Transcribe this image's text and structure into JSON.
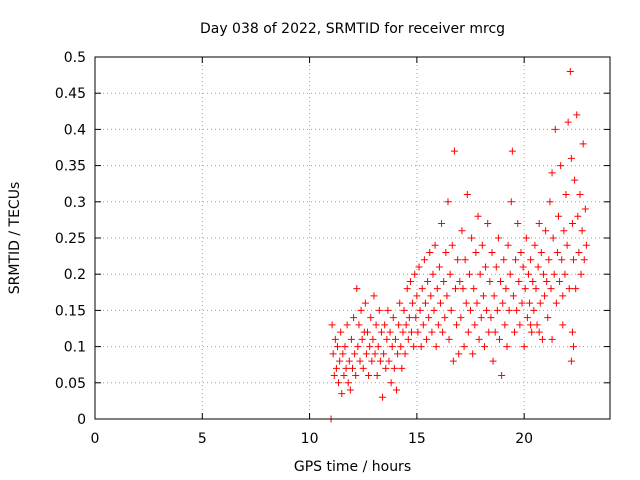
{
  "chart_data": {
    "type": "scatter",
    "title": "Day 038 of 2022, SRMTID for receiver mrcg",
    "xlabel": "GPS time / hours",
    "ylabel": "SRMTID / TECUs",
    "xlim": [
      0,
      24
    ],
    "ylim": [
      0,
      0.5
    ],
    "x_ticks": [
      0,
      5,
      10,
      15,
      20
    ],
    "x_tick_labels": [
      "0",
      "5",
      "10",
      "15",
      "20"
    ],
    "y_ticks": [
      0,
      0.05,
      0.1,
      0.15,
      0.2,
      0.25,
      0.3,
      0.35,
      0.4,
      0.45,
      0.5
    ],
    "y_tick_labels": [
      "0",
      "0.05",
      "0.1",
      "0.15",
      "0.2",
      "0.25",
      "0.3",
      "0.35",
      "0.4",
      "0.45",
      "0.5"
    ],
    "grid": true,
    "marker": "plus",
    "color": "#ff0000",
    "series": [
      {
        "name": "SRMTID",
        "points": [
          [
            11.0,
            0.0
          ],
          [
            11.05,
            0.13
          ],
          [
            11.1,
            0.09
          ],
          [
            11.15,
            0.06
          ],
          [
            11.2,
            0.11
          ],
          [
            11.25,
            0.07
          ],
          [
            11.3,
            0.1
          ],
          [
            11.35,
            0.05
          ],
          [
            11.4,
            0.08
          ],
          [
            11.45,
            0.12
          ],
          [
            11.5,
            0.035
          ],
          [
            11.55,
            0.09
          ],
          [
            11.6,
            0.06
          ],
          [
            11.65,
            0.1
          ],
          [
            11.7,
            0.07
          ],
          [
            11.75,
            0.13
          ],
          [
            11.8,
            0.05
          ],
          [
            11.85,
            0.08
          ],
          [
            11.9,
            0.04
          ],
          [
            11.95,
            0.11
          ],
          [
            12.0,
            0.07
          ],
          [
            12.05,
            0.14
          ],
          [
            12.1,
            0.09
          ],
          [
            12.15,
            0.06
          ],
          [
            12.2,
            0.18
          ],
          [
            12.25,
            0.1
          ],
          [
            12.3,
            0.13
          ],
          [
            12.35,
            0.08
          ],
          [
            12.4,
            0.15
          ],
          [
            12.45,
            0.11
          ],
          [
            12.5,
            0.07
          ],
          [
            12.55,
            0.12
          ],
          [
            12.6,
            0.16
          ],
          [
            12.65,
            0.09
          ],
          [
            12.7,
            0.12
          ],
          [
            12.75,
            0.06
          ],
          [
            12.8,
            0.1
          ],
          [
            12.85,
            0.14
          ],
          [
            12.9,
            0.08
          ],
          [
            12.95,
            0.11
          ],
          [
            13.0,
            0.17
          ],
          [
            13.05,
            0.09
          ],
          [
            13.1,
            0.13
          ],
          [
            13.15,
            0.06
          ],
          [
            13.2,
            0.1
          ],
          [
            13.25,
            0.15
          ],
          [
            13.3,
            0.08
          ],
          [
            13.35,
            0.12
          ],
          [
            13.4,
            0.03
          ],
          [
            13.45,
            0.09
          ],
          [
            13.5,
            0.13
          ],
          [
            13.55,
            0.07
          ],
          [
            13.6,
            0.11
          ],
          [
            13.65,
            0.15
          ],
          [
            13.7,
            0.08
          ],
          [
            13.75,
            0.12
          ],
          [
            13.8,
            0.05
          ],
          [
            13.85,
            0.1
          ],
          [
            13.9,
            0.14
          ],
          [
            13.95,
            0.07
          ],
          [
            14.0,
            0.11
          ],
          [
            14.05,
            0.04
          ],
          [
            14.1,
            0.09
          ],
          [
            14.15,
            0.13
          ],
          [
            14.2,
            0.16
          ],
          [
            14.25,
            0.1
          ],
          [
            14.3,
            0.07
          ],
          [
            14.35,
            0.12
          ],
          [
            14.4,
            0.15
          ],
          [
            14.45,
            0.09
          ],
          [
            14.5,
            0.13
          ],
          [
            14.55,
            0.18
          ],
          [
            14.6,
            0.11
          ],
          [
            14.65,
            0.14
          ],
          [
            14.7,
            0.19
          ],
          [
            14.75,
            0.12
          ],
          [
            14.8,
            0.16
          ],
          [
            14.85,
            0.1
          ],
          [
            14.9,
            0.2
          ],
          [
            14.95,
            0.14
          ],
          [
            15.0,
            0.17
          ],
          [
            15.05,
            0.12
          ],
          [
            15.1,
            0.21
          ],
          [
            15.15,
            0.15
          ],
          [
            15.2,
            0.1
          ],
          [
            15.25,
            0.18
          ],
          [
            15.3,
            0.13
          ],
          [
            15.35,
            0.22
          ],
          [
            15.4,
            0.16
          ],
          [
            15.45,
            0.11
          ],
          [
            15.5,
            0.19
          ],
          [
            15.55,
            0.14
          ],
          [
            15.6,
            0.23
          ],
          [
            15.65,
            0.17
          ],
          [
            15.7,
            0.12
          ],
          [
            15.75,
            0.2
          ],
          [
            15.8,
            0.15
          ],
          [
            15.85,
            0.24
          ],
          [
            15.9,
            0.1
          ],
          [
            15.95,
            0.18
          ],
          [
            16.0,
            0.13
          ],
          [
            16.05,
            0.21
          ],
          [
            16.1,
            0.16
          ],
          [
            16.15,
            0.27
          ],
          [
            16.2,
            0.12
          ],
          [
            16.25,
            0.19
          ],
          [
            16.3,
            0.14
          ],
          [
            16.35,
            0.23
          ],
          [
            16.4,
            0.17
          ],
          [
            16.45,
            0.3
          ],
          [
            16.5,
            0.11
          ],
          [
            16.55,
            0.2
          ],
          [
            16.6,
            0.15
          ],
          [
            16.65,
            0.24
          ],
          [
            16.7,
            0.08
          ],
          [
            16.75,
            0.37
          ],
          [
            16.8,
            0.18
          ],
          [
            16.85,
            0.13
          ],
          [
            16.9,
            0.22
          ],
          [
            16.95,
            0.09
          ],
          [
            17.0,
            0.19
          ],
          [
            17.05,
            0.14
          ],
          [
            17.1,
            0.26
          ],
          [
            17.15,
            0.18
          ],
          [
            17.2,
            0.1
          ],
          [
            17.25,
            0.22
          ],
          [
            17.3,
            0.16
          ],
          [
            17.35,
            0.31
          ],
          [
            17.4,
            0.12
          ],
          [
            17.45,
            0.2
          ],
          [
            17.5,
            0.15
          ],
          [
            17.55,
            0.25
          ],
          [
            17.6,
            0.09
          ],
          [
            17.65,
            0.18
          ],
          [
            17.7,
            0.13
          ],
          [
            17.75,
            0.23
          ],
          [
            17.8,
            0.16
          ],
          [
            17.85,
            0.28
          ],
          [
            17.9,
            0.11
          ],
          [
            17.95,
            0.2
          ],
          [
            18.0,
            0.14
          ],
          [
            18.05,
            0.24
          ],
          [
            18.1,
            0.17
          ],
          [
            18.15,
            0.1
          ],
          [
            18.2,
            0.21
          ],
          [
            18.25,
            0.15
          ],
          [
            18.3,
            0.27
          ],
          [
            18.35,
            0.12
          ],
          [
            18.4,
            0.19
          ],
          [
            18.45,
            0.14
          ],
          [
            18.5,
            0.23
          ],
          [
            18.55,
            0.08
          ],
          [
            18.6,
            0.17
          ],
          [
            18.65,
            0.12
          ],
          [
            18.7,
            0.21
          ],
          [
            18.75,
            0.15
          ],
          [
            18.8,
            0.25
          ],
          [
            18.85,
            0.11
          ],
          [
            18.9,
            0.19
          ],
          [
            18.95,
            0.06
          ],
          [
            19.0,
            0.16
          ],
          [
            19.05,
            0.22
          ],
          [
            19.1,
            0.13
          ],
          [
            19.15,
            0.18
          ],
          [
            19.2,
            0.1
          ],
          [
            19.25,
            0.24
          ],
          [
            19.3,
            0.15
          ],
          [
            19.35,
            0.2
          ],
          [
            19.4,
            0.3
          ],
          [
            19.45,
            0.37
          ],
          [
            19.5,
            0.17
          ],
          [
            19.55,
            0.12
          ],
          [
            19.6,
            0.22
          ],
          [
            19.65,
            0.15
          ],
          [
            19.7,
            0.27
          ],
          [
            19.75,
            0.19
          ],
          [
            19.8,
            0.13
          ],
          [
            19.85,
            0.23
          ],
          [
            19.9,
            0.16
          ],
          [
            19.95,
            0.21
          ],
          [
            20.0,
            0.1
          ],
          [
            20.05,
            0.18
          ],
          [
            20.1,
            0.25
          ],
          [
            20.15,
            0.14
          ],
          [
            20.2,
            0.2
          ],
          [
            20.25,
            0.16
          ],
          [
            20.3,
            0.22
          ],
          [
            20.35,
            0.12
          ],
          [
            20.4,
            0.19
          ],
          [
            20.45,
            0.15
          ],
          [
            20.5,
            0.24
          ],
          [
            20.55,
            0.18
          ],
          [
            20.6,
            0.13
          ],
          [
            20.65,
            0.21
          ],
          [
            20.7,
            0.27
          ],
          [
            20.75,
            0.16
          ],
          [
            20.8,
            0.23
          ],
          [
            20.85,
            0.11
          ],
          [
            20.9,
            0.2
          ],
          [
            20.95,
            0.17
          ],
          [
            21.0,
            0.26
          ],
          [
            21.05,
            0.19
          ],
          [
            21.1,
            0.14
          ],
          [
            21.15,
            0.22
          ],
          [
            21.2,
            0.3
          ],
          [
            21.25,
            0.18
          ],
          [
            21.3,
            0.34
          ],
          [
            21.35,
            0.25
          ],
          [
            21.4,
            0.2
          ],
          [
            21.45,
            0.4
          ],
          [
            21.5,
            0.16
          ],
          [
            21.55,
            0.23
          ],
          [
            21.6,
            0.28
          ],
          [
            21.65,
            0.19
          ],
          [
            21.7,
            0.35
          ],
          [
            21.75,
            0.22
          ],
          [
            21.8,
            0.17
          ],
          [
            21.85,
            0.26
          ],
          [
            21.9,
            0.2
          ],
          [
            21.95,
            0.31
          ],
          [
            22.0,
            0.24
          ],
          [
            22.05,
            0.41
          ],
          [
            22.1,
            0.18
          ],
          [
            22.15,
            0.48
          ],
          [
            22.2,
            0.36
          ],
          [
            22.25,
            0.27
          ],
          [
            22.3,
            0.22
          ],
          [
            22.35,
            0.33
          ],
          [
            22.4,
            0.18
          ],
          [
            22.45,
            0.42
          ],
          [
            22.5,
            0.28
          ],
          [
            22.55,
            0.23
          ],
          [
            22.6,
            0.31
          ],
          [
            22.65,
            0.2
          ],
          [
            22.7,
            0.26
          ],
          [
            22.75,
            0.38
          ],
          [
            22.8,
            0.22
          ],
          [
            22.85,
            0.29
          ],
          [
            22.9,
            0.24
          ],
          [
            22.2,
            0.08
          ],
          [
            22.25,
            0.12
          ],
          [
            22.3,
            0.1
          ],
          [
            21.8,
            0.13
          ],
          [
            21.3,
            0.11
          ],
          [
            20.7,
            0.12
          ],
          [
            20.3,
            0.13
          ]
        ]
      }
    ]
  }
}
